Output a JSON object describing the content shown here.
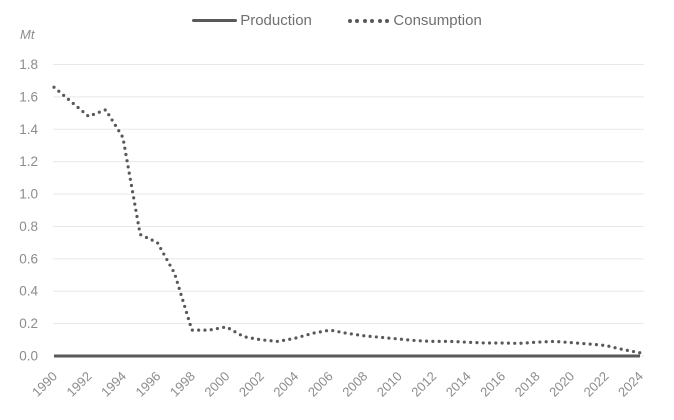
{
  "chart_data": {
    "type": "line",
    "title": "",
    "xlabel": "",
    "ylabel": "Mt",
    "ylim": [
      0,
      1.8
    ],
    "grid": true,
    "legend_position": "top-center",
    "x": [
      1990,
      1991,
      1992,
      1993,
      1994,
      1995,
      1996,
      1997,
      1998,
      1999,
      2000,
      2001,
      2002,
      2003,
      2004,
      2005,
      2006,
      2007,
      2008,
      2009,
      2010,
      2011,
      2012,
      2013,
      2014,
      2015,
      2016,
      2017,
      2018,
      2019,
      2020,
      2021,
      2022,
      2023,
      2024
    ],
    "series": [
      {
        "name": "Production",
        "line_style": "solid",
        "color": "#595959",
        "values": [
          0,
          0,
          0,
          0,
          0,
          0,
          0,
          0,
          0,
          0,
          0,
          0,
          0,
          0,
          0,
          0,
          0,
          0,
          0,
          0,
          0,
          0,
          0,
          0,
          0,
          0,
          0,
          0,
          0,
          0,
          0,
          0,
          0,
          0,
          0
        ]
      },
      {
        "name": "Consumption",
        "line_style": "dotted",
        "color": "#595959",
        "values": [
          1.66,
          1.57,
          1.48,
          1.52,
          1.35,
          0.75,
          0.7,
          0.51,
          0.16,
          0.16,
          0.18,
          0.12,
          0.1,
          0.09,
          0.11,
          0.14,
          0.16,
          0.14,
          0.125,
          0.115,
          0.105,
          0.095,
          0.09,
          0.09,
          0.085,
          0.08,
          0.08,
          0.078,
          0.085,
          0.09,
          0.083,
          0.075,
          0.065,
          0.04,
          0.02
        ]
      }
    ],
    "ytick_labels": [
      "0.0",
      "0.2",
      "0.4",
      "0.6",
      "0.8",
      "1.0",
      "1.2",
      "1.4",
      "1.6",
      "1.8"
    ],
    "xtick_labels": [
      "1990",
      "1992",
      "1994",
      "1996",
      "1998",
      "2000",
      "2002",
      "2004",
      "2006",
      "2008",
      "2010",
      "2012",
      "2014",
      "2016",
      "2018",
      "2020",
      "2022",
      "2024"
    ],
    "style": {
      "series_color": "#595959",
      "grid_color": "#e8e8e8",
      "tick_label_color": "#8c8c8c",
      "legend_text_color": "#707070",
      "background": "#ffffff"
    }
  }
}
